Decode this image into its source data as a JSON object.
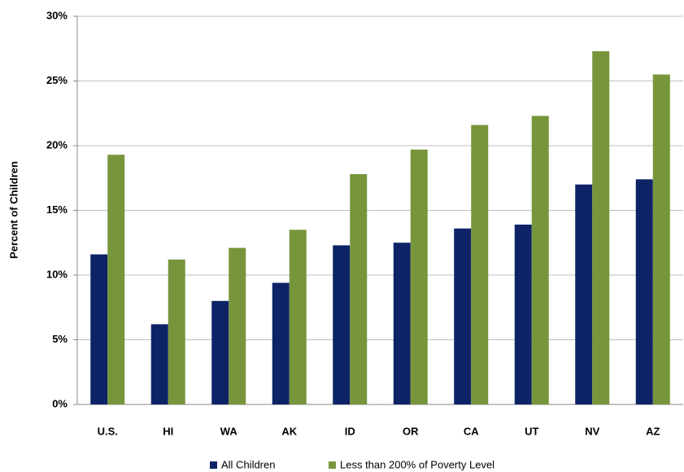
{
  "chart_data": {
    "type": "bar",
    "ylabel": "Percent of Children",
    "categories": [
      "U.S.",
      "HI",
      "WA",
      "AK",
      "ID",
      "OR",
      "CA",
      "UT",
      "NV",
      "AZ"
    ],
    "series": [
      {
        "name": "All Children",
        "color": "#0d2366",
        "values": [
          11.6,
          6.2,
          8.0,
          9.4,
          12.3,
          12.5,
          13.6,
          13.9,
          17.0,
          17.4
        ]
      },
      {
        "name": "Less than 200% of Poverty Level",
        "color": "#77963c",
        "values": [
          19.3,
          11.2,
          12.1,
          13.5,
          17.8,
          19.7,
          21.6,
          22.3,
          27.3,
          25.5
        ]
      }
    ],
    "ylim": [
      0,
      30
    ],
    "yticks": [
      {
        "value": 0,
        "label": "0%"
      },
      {
        "value": 5,
        "label": "5%"
      },
      {
        "value": 10,
        "label": "10%"
      },
      {
        "value": 15,
        "label": "15%"
      },
      {
        "value": 20,
        "label": "20%"
      },
      {
        "value": 25,
        "label": "25%"
      },
      {
        "value": 30,
        "label": "30%"
      }
    ],
    "grid": true,
    "legend": "bottom"
  }
}
